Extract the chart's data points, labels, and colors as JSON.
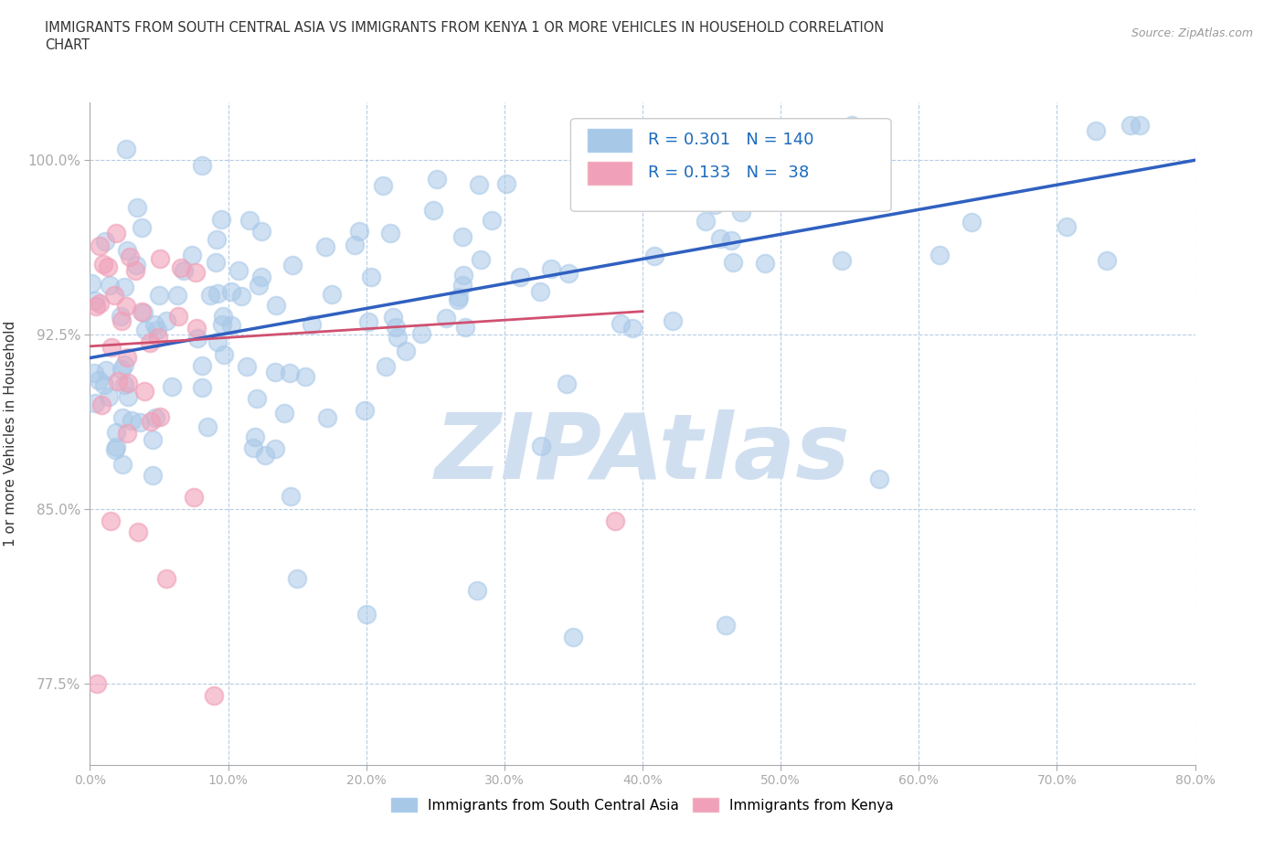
{
  "title_line1": "IMMIGRANTS FROM SOUTH CENTRAL ASIA VS IMMIGRANTS FROM KENYA 1 OR MORE VEHICLES IN HOUSEHOLD CORRELATION",
  "title_line2": "CHART",
  "source_text": "Source: ZipAtlas.com",
  "ylabel": "1 or more Vehicles in Household",
  "xlim": [
    0.0,
    80.0
  ],
  "ylim": [
    74.0,
    102.5
  ],
  "yticks": [
    77.5,
    85.0,
    92.5,
    100.0
  ],
  "xticks": [
    0.0,
    10.0,
    20.0,
    30.0,
    40.0,
    50.0,
    60.0,
    70.0,
    80.0
  ],
  "blue_R": 0.301,
  "blue_N": 140,
  "pink_R": 0.133,
  "pink_N": 38,
  "blue_color": "#a8c8e8",
  "pink_color": "#f0a0b8",
  "trend_blue": "#3060c0",
  "trend_pink": "#d05070",
  "watermark": "ZIPAtlas",
  "watermark_color": "#d0dff0",
  "legend_text_color": "#1a6abf",
  "ytick_color": "#1a6abf",
  "legend_box_color": "#dddddd",
  "blue_legend_label": "Immigrants from South Central Asia",
  "pink_legend_label": "Immigrants from Kenya"
}
